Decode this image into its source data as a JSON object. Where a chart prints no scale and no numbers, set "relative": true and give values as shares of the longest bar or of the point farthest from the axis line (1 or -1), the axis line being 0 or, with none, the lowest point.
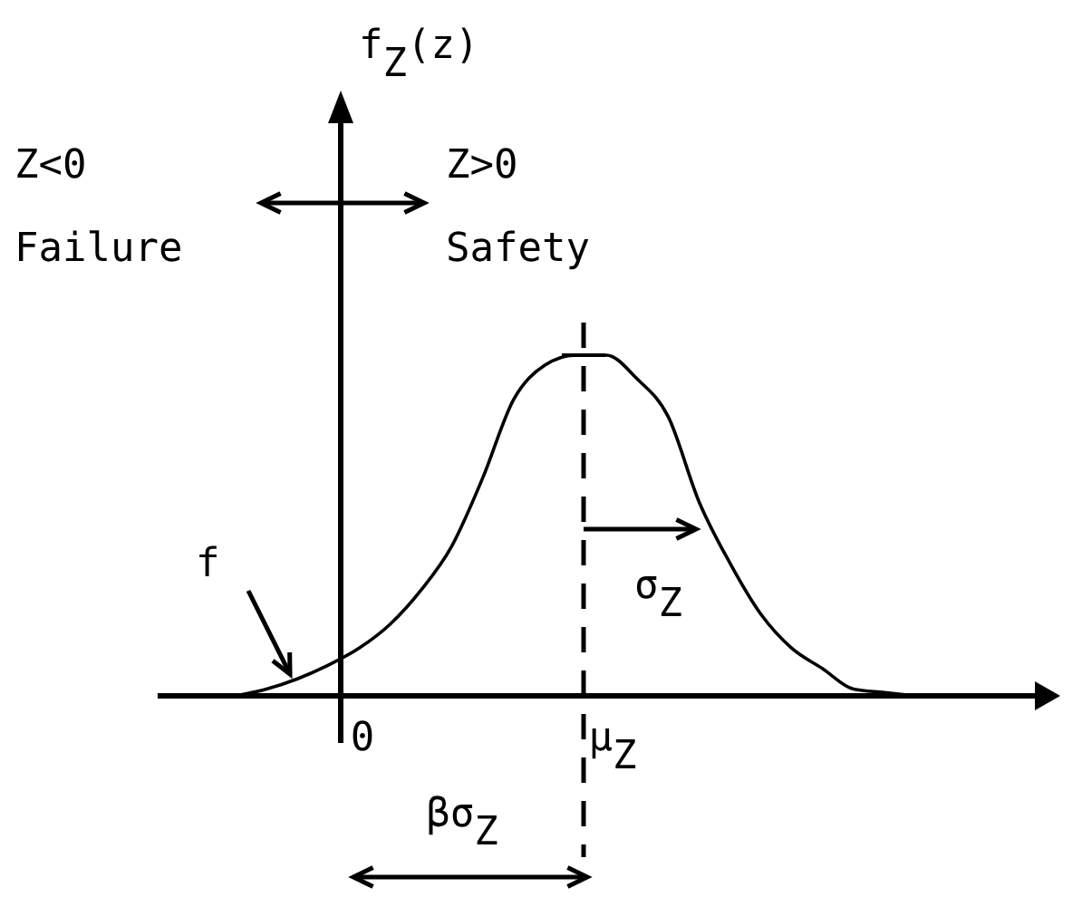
{
  "chart_data": {
    "type": "line",
    "relative": true,
    "categories": [
      null,
      null,
      null,
      null,
      null,
      null,
      null,
      null,
      null,
      null,
      null,
      null,
      null,
      null,
      null,
      null,
      null,
      null,
      null,
      null,
      null,
      null,
      null
    ],
    "series": [
      {
        "color": "#000000",
        "values": [
          0,
          0.02,
          0.05,
          0.09,
          0.14,
          0.21,
          0.31,
          0.44,
          0.64,
          0.87,
          0.97,
          1,
          1,
          0.93,
          0.82,
          0.57,
          0.39,
          0.24,
          0.14,
          0.08,
          0.02,
          0.01,
          0
        ]
      }
    ],
    "annotations": [
      "f$_{Z}$(z)",
      "Z<0",
      "Failure",
      "Z>0",
      "Safety",
      "βσ$_{Z}$",
      "f",
      "σ$_{Z}$",
      "0",
      "μ$_{Z}$"
    ],
    "grid": false,
    "marker": "none",
    "line_style": "solid"
  }
}
